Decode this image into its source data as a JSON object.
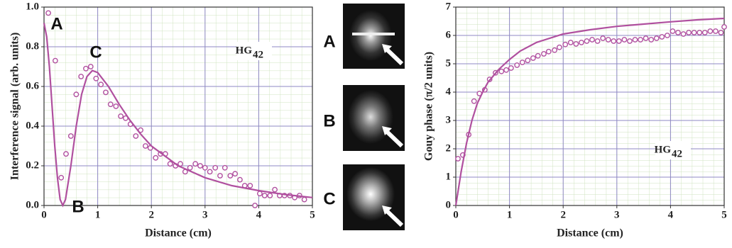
{
  "image_labels": [
    "A",
    "B",
    "C"
  ],
  "chart_data": [
    {
      "type": "scatter",
      "ylabel": "Interference signal (arb. units)",
      "xlabel": "Distance (cm)",
      "xlim": [
        0,
        5
      ],
      "xticks": [
        0,
        1,
        2,
        3,
        4,
        5
      ],
      "ylim": [
        0,
        1
      ],
      "yticks": [
        {
          "value": 0,
          "label": "0.0"
        },
        0.2,
        0.4,
        0.6,
        0.8,
        {
          "value": 1,
          "label": "1.0"
        }
      ],
      "grid": true,
      "minor_grid": 5,
      "annotations": [
        "A",
        "C",
        "B"
      ],
      "mode_label": {
        "text": "HG",
        "sub": "42"
      },
      "series": [
        {
          "style": "markers",
          "color": "#b0509f",
          "x": [
            0.08,
            0.21,
            0.32,
            0.41,
            0.5,
            0.6,
            0.69,
            0.78,
            0.87,
            0.97,
            1.06,
            1.15,
            1.24,
            1.34,
            1.43,
            1.52,
            1.61,
            1.71,
            1.8,
            1.89,
            1.98,
            2.08,
            2.17,
            2.26,
            2.35,
            2.45,
            2.54,
            2.63,
            2.72,
            2.82,
            2.91,
            3.0,
            3.09,
            3.19,
            3.28,
            3.37,
            3.47,
            3.56,
            3.65,
            3.74,
            3.84,
            3.93,
            4.02,
            4.11,
            4.21,
            4.3,
            4.39,
            4.48,
            4.58,
            4.67,
            4.76,
            4.85
          ],
          "values": [
            0.97,
            0.73,
            0.14,
            0.26,
            0.35,
            0.56,
            0.65,
            0.69,
            0.7,
            0.64,
            0.61,
            0.57,
            0.51,
            0.5,
            0.45,
            0.44,
            0.41,
            0.35,
            0.38,
            0.3,
            0.29,
            0.24,
            0.26,
            0.26,
            0.21,
            0.2,
            0.21,
            0.17,
            0.19,
            0.21,
            0.2,
            0.19,
            0.17,
            0.19,
            0.15,
            0.19,
            0.15,
            0.16,
            0.13,
            0.1,
            0.1,
            0.0,
            0.06,
            0.05,
            0.05,
            0.08,
            0.05,
            0.05,
            0.05,
            0.04,
            0.05,
            0.03
          ]
        },
        {
          "style": "line",
          "color": "#b0509f",
          "x": [
            0,
            0.05,
            0.1,
            0.15,
            0.2,
            0.25,
            0.3,
            0.35,
            0.4,
            0.5,
            0.6,
            0.7,
            0.8,
            0.9,
            1.0,
            1.2,
            1.4,
            1.6,
            1.8,
            2.0,
            2.5,
            3.0,
            3.5,
            4.0,
            4.5,
            5.0
          ],
          "values": [
            0.92,
            0.85,
            0.7,
            0.5,
            0.3,
            0.14,
            0.03,
            0.0,
            0.03,
            0.2,
            0.4,
            0.56,
            0.65,
            0.68,
            0.67,
            0.6,
            0.51,
            0.43,
            0.36,
            0.3,
            0.2,
            0.14,
            0.1,
            0.075,
            0.055,
            0.04
          ]
        }
      ]
    },
    {
      "type": "scatter",
      "ylabel": "Gouy phase (π/2 units)",
      "xlabel": "Distance (cm)",
      "xlim": [
        0,
        5
      ],
      "xticks": [
        0,
        1,
        2,
        3,
        4,
        5
      ],
      "ylim": [
        0,
        7
      ],
      "yticks": [
        0,
        1,
        2,
        3,
        4,
        5,
        6,
        7
      ],
      "grid": true,
      "minor_grid": 5,
      "annotations": [],
      "mode_label": {
        "text": "HG",
        "sub": "42"
      },
      "series": [
        {
          "style": "markers",
          "color": "#b0509f",
          "x": [
            0.04,
            0.13,
            0.24,
            0.34,
            0.44,
            0.54,
            0.63,
            0.74,
            0.85,
            0.94,
            1.03,
            1.14,
            1.24,
            1.34,
            1.44,
            1.53,
            1.64,
            1.73,
            1.84,
            1.93,
            2.04,
            2.14,
            2.24,
            2.34,
            2.44,
            2.54,
            2.64,
            2.74,
            2.84,
            2.94,
            3.04,
            3.14,
            3.24,
            3.34,
            3.44,
            3.54,
            3.64,
            3.74,
            3.84,
            3.94,
            4.04,
            4.14,
            4.24,
            4.34,
            4.44,
            4.54,
            4.64,
            4.74,
            4.84,
            4.94,
            5.0
          ],
          "values": [
            1.65,
            1.78,
            2.5,
            3.68,
            3.95,
            4.08,
            4.45,
            4.68,
            4.73,
            4.78,
            4.85,
            4.95,
            5.05,
            5.12,
            5.2,
            5.28,
            5.35,
            5.43,
            5.48,
            5.58,
            5.68,
            5.75,
            5.7,
            5.75,
            5.8,
            5.85,
            5.8,
            5.9,
            5.85,
            5.8,
            5.8,
            5.85,
            5.8,
            5.85,
            5.85,
            5.9,
            5.85,
            5.9,
            5.95,
            6.0,
            6.15,
            6.1,
            6.05,
            6.1,
            6.1,
            6.1,
            6.1,
            6.15,
            6.15,
            6.1,
            6.3
          ]
        },
        {
          "style": "line",
          "color": "#b0509f",
          "x": [
            0,
            0.05,
            0.1,
            0.2,
            0.3,
            0.4,
            0.5,
            0.6,
            0.8,
            1.0,
            1.2,
            1.5,
            2.0,
            2.5,
            3.0,
            3.5,
            4.0,
            4.5,
            5.0
          ],
          "values": [
            0,
            0.6,
            1.2,
            2.2,
            3.0,
            3.6,
            4.0,
            4.35,
            4.8,
            5.15,
            5.45,
            5.75,
            6.05,
            6.2,
            6.32,
            6.4,
            6.48,
            6.55,
            6.6
          ]
        }
      ]
    }
  ]
}
